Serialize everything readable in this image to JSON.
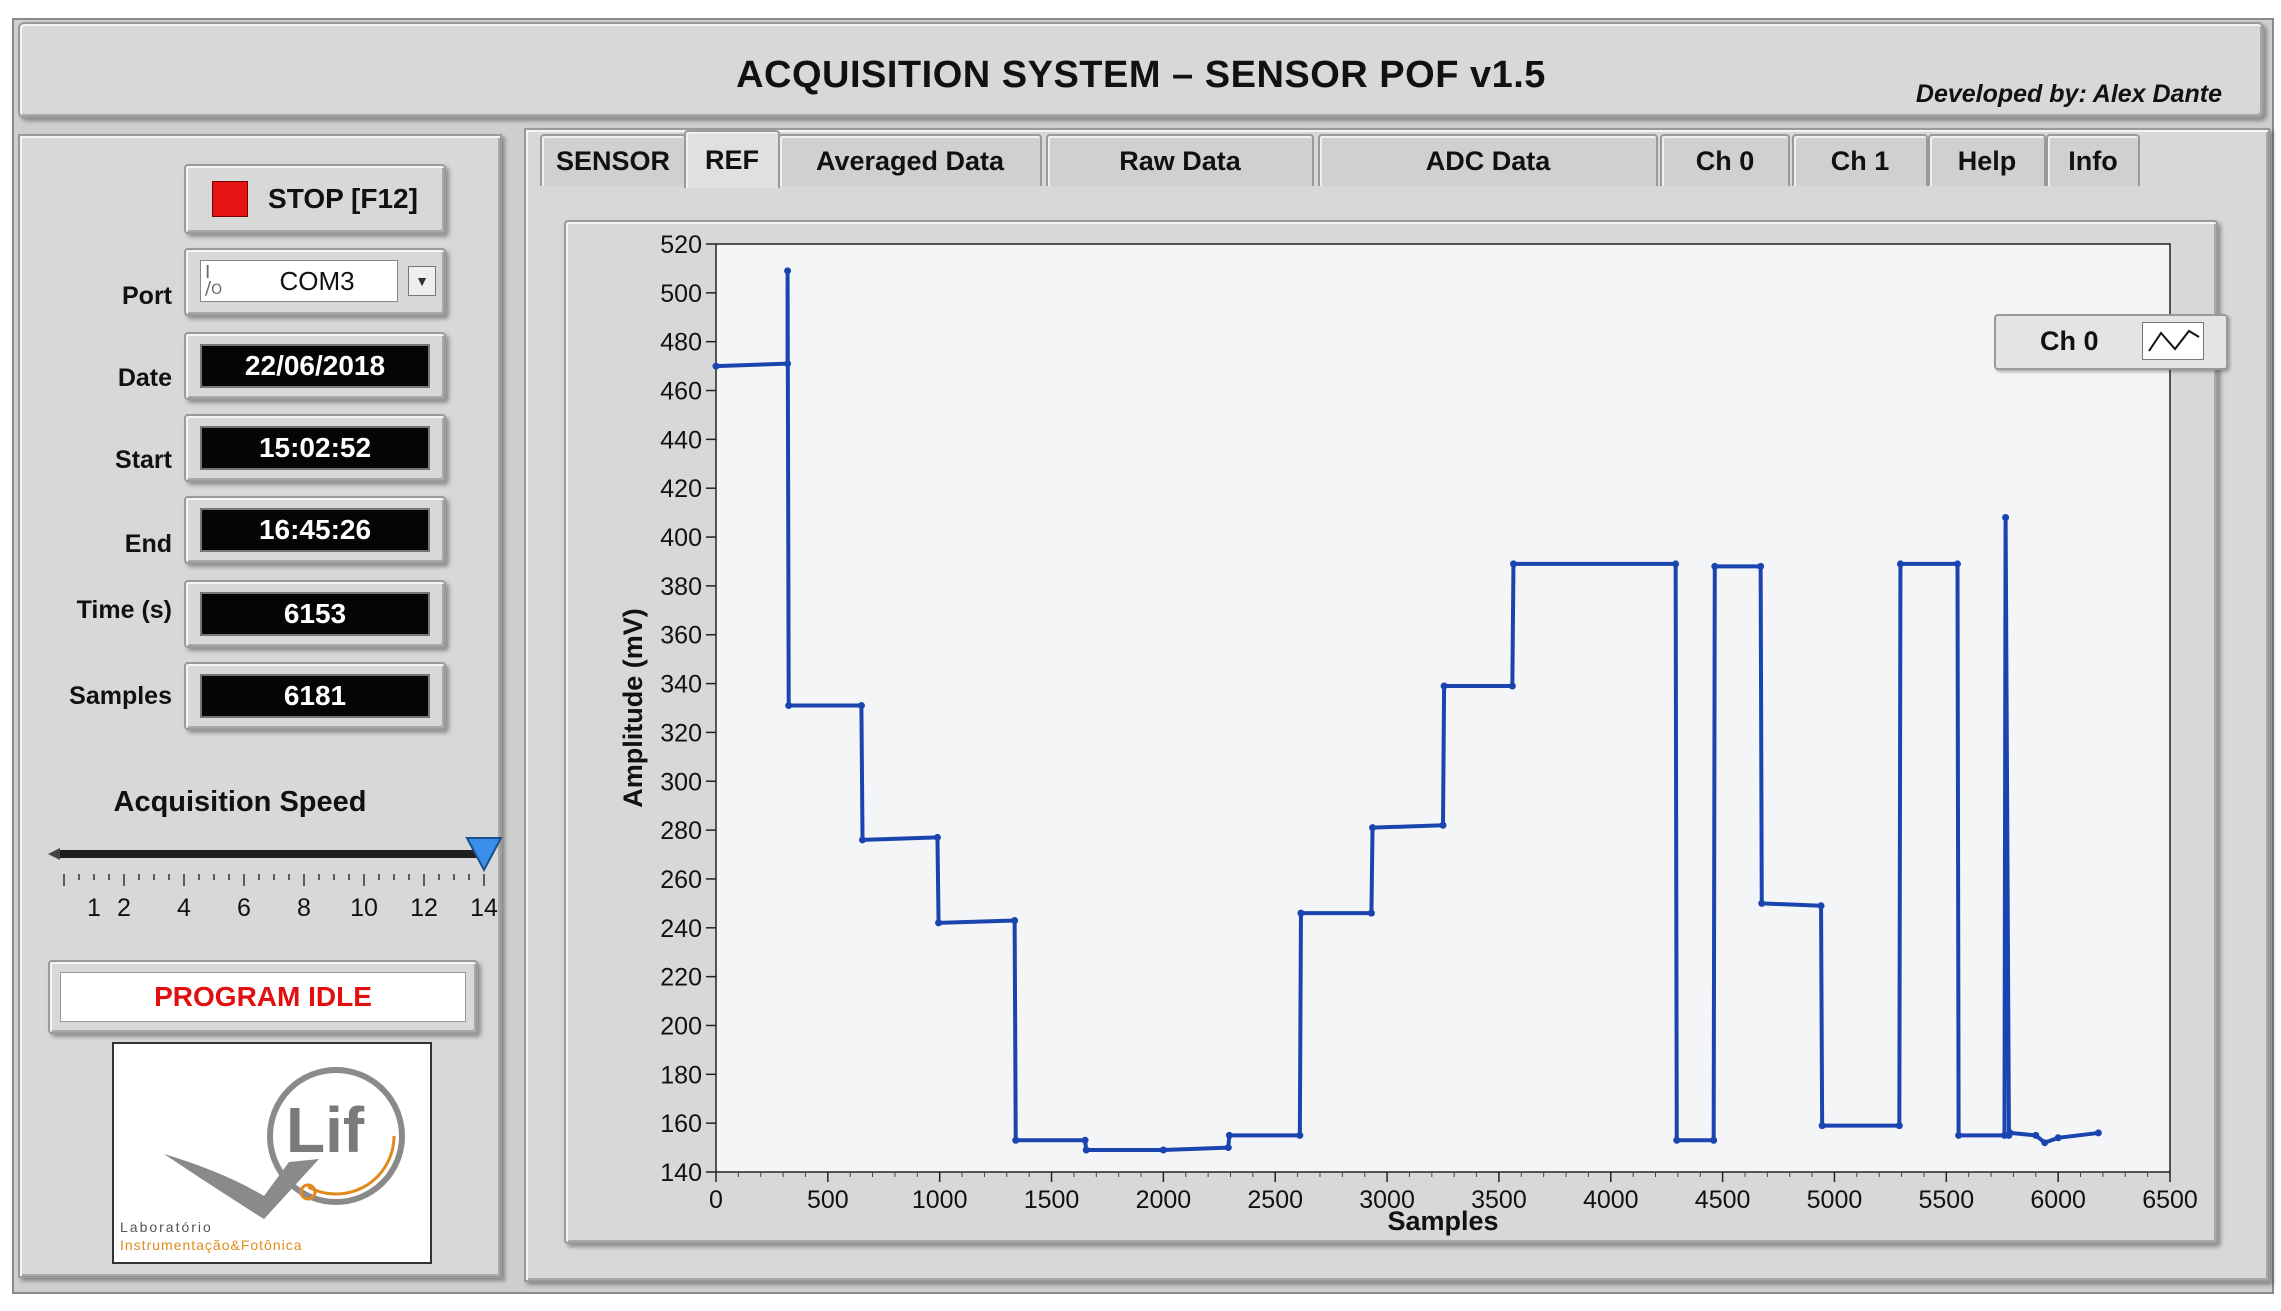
{
  "header": {
    "title": "ACQUISITION SYSTEM – SENSOR POF v1.5",
    "developed_by": "Developed by: Alex Dante"
  },
  "left_panel": {
    "stop_button": "STOP [F12]",
    "port": {
      "label": "Port",
      "value": "COM3",
      "io_glyph": "I/O"
    },
    "date": {
      "label": "Date",
      "value": "22/06/2018"
    },
    "start": {
      "label": "Start",
      "value": "15:02:52"
    },
    "end": {
      "label": "End",
      "value": "16:45:26"
    },
    "time": {
      "label": "Time (s)",
      "value": "6153"
    },
    "samples": {
      "label": "Samples",
      "value": "6181"
    },
    "speed": {
      "label": "Acquisition Speed",
      "min": 0,
      "max": 14,
      "value": 14,
      "tick_labels": [
        "1",
        "2",
        "4",
        "6",
        "8",
        "10",
        "12",
        "14"
      ]
    },
    "status": "PROGRAM IDLE",
    "logo": {
      "mark": "Lif",
      "line1": "Laboratório",
      "line2": "Instrumentação&Fotônica"
    }
  },
  "tabs": [
    {
      "label": "SENSOR",
      "active": false
    },
    {
      "label": "REF",
      "active": true
    },
    {
      "label": "Averaged Data",
      "active": false
    },
    {
      "label": "Raw Data",
      "active": false
    },
    {
      "label": "ADC Data",
      "active": false
    },
    {
      "label": "Ch 0",
      "active": false
    },
    {
      "label": "Ch 1",
      "active": false
    },
    {
      "label": "Help",
      "active": false
    },
    {
      "label": "Info",
      "active": false
    }
  ],
  "colors": {
    "series": "#1a44b0",
    "status_text": "#e01010",
    "stop_icon": "#e51414",
    "slider_thumb": "#3a8fe8",
    "logo_orange": "#e08a1e"
  },
  "chart_data": {
    "type": "line",
    "title": "",
    "xlabel": "Samples",
    "ylabel": "Amplitude (mV)",
    "xlim": [
      0,
      6500
    ],
    "ylim": [
      140,
      520
    ],
    "xticks": [
      0,
      500,
      1000,
      1500,
      2000,
      2500,
      3000,
      3500,
      4000,
      4500,
      5000,
      5500,
      6000,
      6500
    ],
    "yticks": [
      140,
      160,
      180,
      200,
      220,
      240,
      260,
      280,
      300,
      320,
      340,
      360,
      380,
      400,
      420,
      440,
      460,
      480,
      500,
      520
    ],
    "grid": false,
    "legend_position": "top-right",
    "series": [
      {
        "name": "Ch 0",
        "x": [
          0,
          320,
          320,
          325,
          650,
          655,
          990,
          995,
          1335,
          1340,
          1650,
          1655,
          2000,
          2290,
          2295,
          2610,
          2615,
          2930,
          2935,
          3250,
          3255,
          3560,
          3565,
          4290,
          4295,
          4460,
          4465,
          4670,
          4675,
          4940,
          4945,
          5290,
          5295,
          5550,
          5555,
          5760,
          5765,
          5780,
          5785,
          5900,
          5940,
          6000,
          6180
        ],
        "y": [
          470,
          471,
          509,
          331,
          331,
          276,
          277,
          242,
          243,
          153,
          153,
          149,
          149,
          150,
          155,
          155,
          246,
          246,
          281,
          282,
          339,
          339,
          389,
          389,
          153,
          153,
          388,
          388,
          250,
          249,
          159,
          159,
          389,
          389,
          155,
          155,
          408,
          155,
          156,
          155,
          152,
          154,
          156
        ]
      }
    ]
  }
}
